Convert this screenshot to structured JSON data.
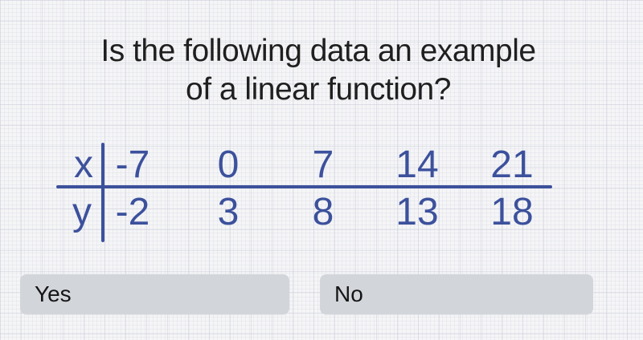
{
  "question": {
    "line1": "Is the following data an example",
    "line2": "of a linear function?"
  },
  "table": {
    "x_label": "x",
    "y_label": "y",
    "x_values": [
      "-7",
      "0",
      "7",
      "14",
      "21"
    ],
    "y_values": [
      "-2",
      "3",
      "8",
      "13",
      "18"
    ]
  },
  "answers": {
    "yes_label": "Yes",
    "no_label": "No"
  },
  "colors": {
    "table_blue": "#3c519c",
    "title_text": "#1f1f1f",
    "button_bg": "#d2d5da",
    "button_text": "#151515",
    "background": "#f5f5f7"
  }
}
